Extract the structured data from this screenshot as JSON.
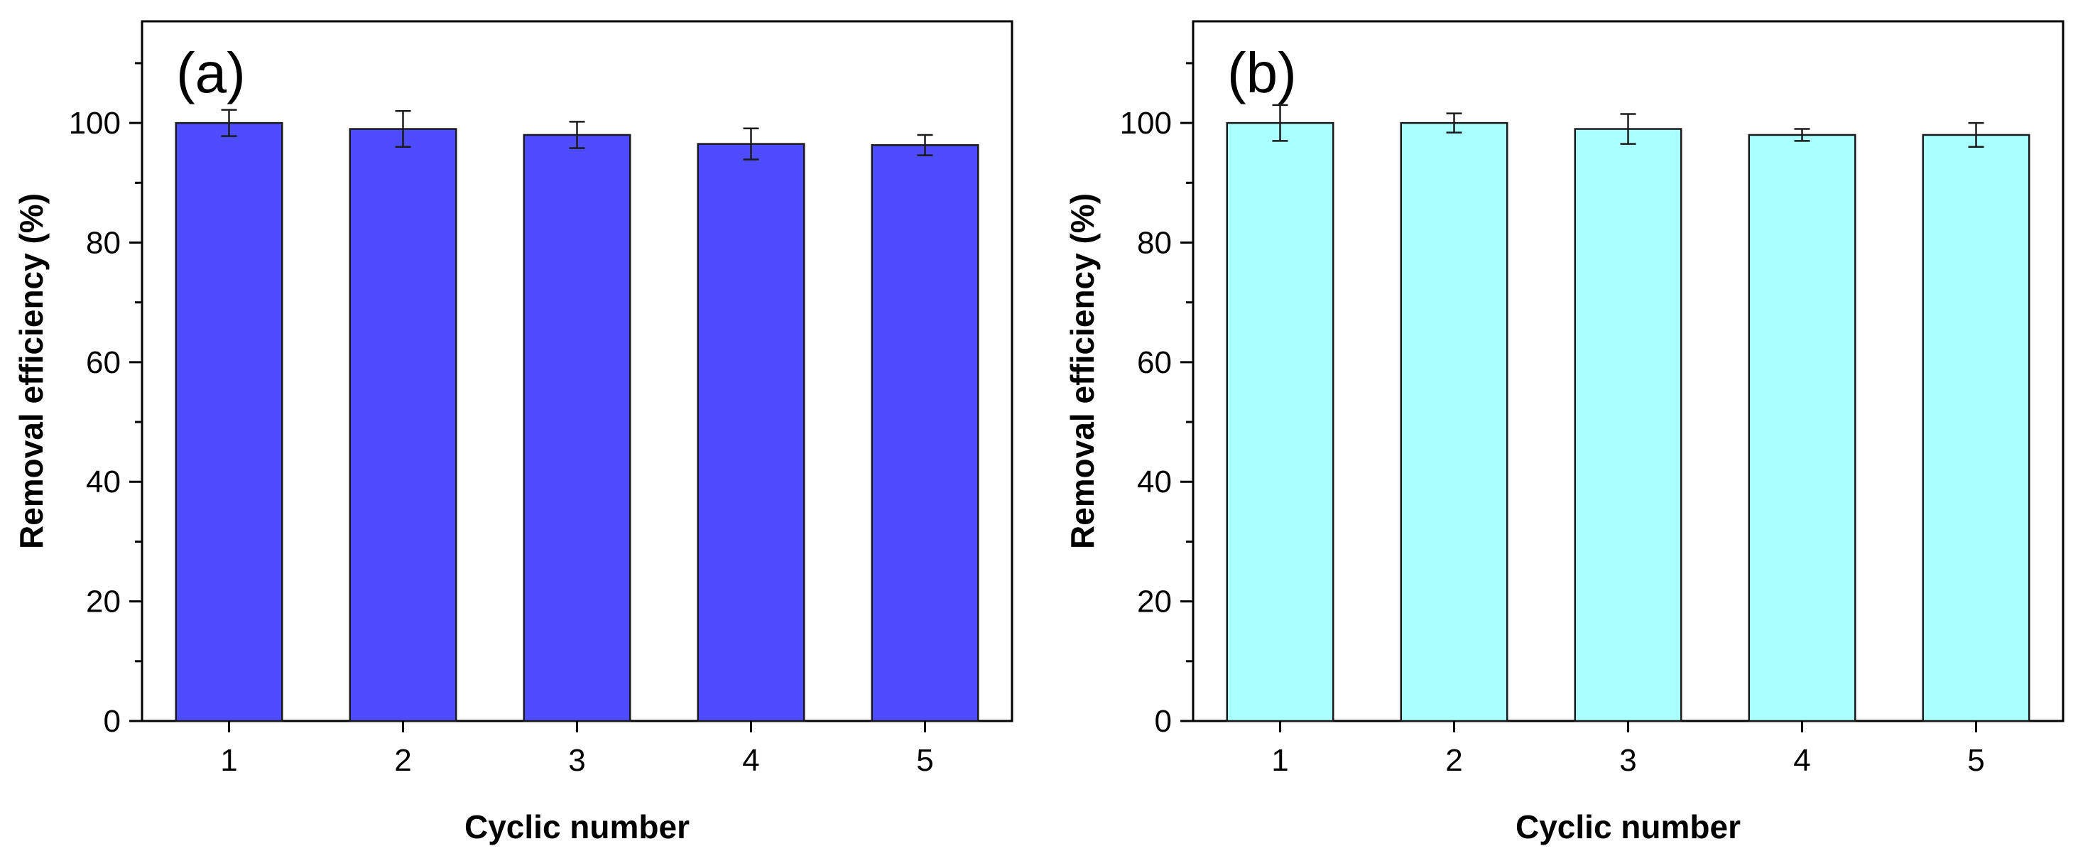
{
  "chart_data": [
    {
      "type": "bar",
      "panel_label": "(a)",
      "categories": [
        "1",
        "2",
        "3",
        "4",
        "5"
      ],
      "values": [
        100,
        99,
        98,
        96.5,
        96.3
      ],
      "errors": [
        2.2,
        3,
        2.2,
        2.6,
        1.7
      ],
      "xlabel": "Cyclic number",
      "ylabel": "Removal efficiency (%)",
      "ylim": [
        0,
        117
      ],
      "yticks": [
        0,
        20,
        40,
        60,
        80,
        100
      ],
      "bar_color": "#4d4dff"
    },
    {
      "type": "bar",
      "panel_label": "(b)",
      "categories": [
        "1",
        "2",
        "3",
        "4",
        "5"
      ],
      "values": [
        100,
        100,
        99,
        98,
        98
      ],
      "errors": [
        3,
        1.6,
        2.5,
        1,
        2
      ],
      "xlabel": "Cyclic number",
      "ylabel": "Removal efficiency (%)",
      "ylim": [
        0,
        117
      ],
      "yticks": [
        0,
        20,
        40,
        60,
        80,
        100
      ],
      "bar_color": "#aaffff"
    }
  ]
}
